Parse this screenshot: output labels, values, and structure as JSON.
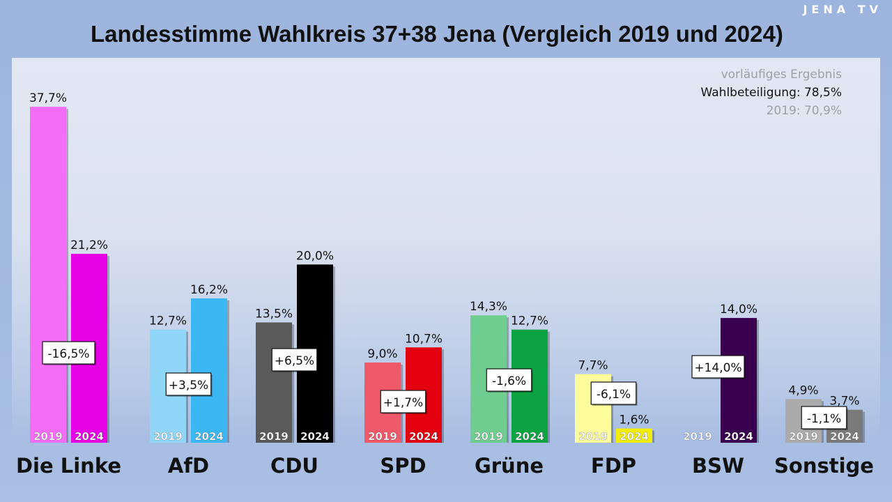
{
  "title": "Landesstimme Wahlkreis 37+38 Jena (Vergleich 2019 und 2024)",
  "logo": "JENA TV",
  "info": {
    "status": "vorläufiges Ergebnis",
    "turnout": "Wahlbeteiligung: 78,5%",
    "turnout_2019": "2019: 70,9%"
  },
  "chart_data": {
    "type": "bar",
    "title": "Landesstimme Wahlkreis 37+38 Jena (Vergleich 2019 und 2024)",
    "categories": [
      "Die Linke",
      "AfD",
      "CDU",
      "SPD",
      "Grüne",
      "FDP",
      "BSW",
      "Sonstige"
    ],
    "series": [
      {
        "name": "2019",
        "values": [
          37.7,
          12.7,
          13.5,
          9.0,
          14.3,
          7.7,
          null,
          4.9
        ],
        "labels": [
          "37,7%",
          "12,7%",
          "13,5%",
          "9,0%",
          "14,3%",
          "7,7%",
          "",
          "4,9%"
        ],
        "colors": [
          "#f46df6",
          "#8fd6f8",
          "#5a5a5a",
          "#ef5a6a",
          "#6fce8f",
          "#fdfd9c",
          null,
          "#ababab"
        ]
      },
      {
        "name": "2024",
        "values": [
          21.2,
          16.2,
          20.0,
          10.7,
          12.7,
          1.6,
          14.0,
          3.7
        ],
        "labels": [
          "21,2%",
          "16,2%",
          "20,0%",
          "10,7%",
          "12,7%",
          "1,6%",
          "14,0%",
          "3,7%"
        ],
        "colors": [
          "#e600e6",
          "#3bb8f3",
          "#000000",
          "#e3000f",
          "#0ba443",
          "#f2ee00",
          "#3a0050",
          "#7a7a7a"
        ]
      }
    ],
    "changes": [
      "-16,5%",
      "+3,5%",
      "+6,5%",
      "+1,7%",
      "-1,6%",
      "-6,1%",
      "+14,0%",
      "-1,1%"
    ],
    "ylim": [
      0,
      40
    ]
  }
}
